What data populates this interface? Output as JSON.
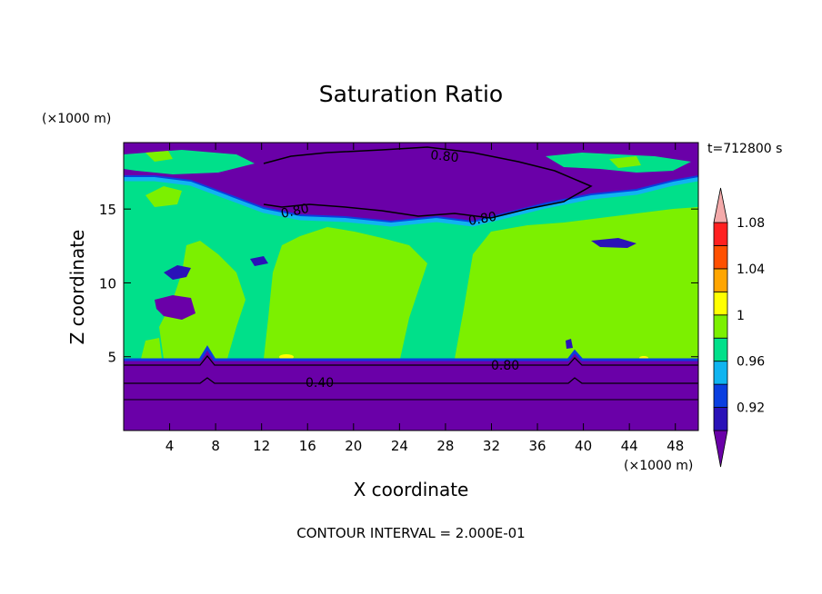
{
  "chart_data": {
    "type": "heatmap",
    "title": "Saturation Ratio",
    "xlabel": "X coordinate",
    "ylabel": "Z coordinate",
    "x_unit": "(×1000 m)",
    "y_unit": "(×1000 m)",
    "time_label": "t=712800 s",
    "footer": "CONTOUR INTERVAL = 2.000E-01",
    "xlim": [
      0,
      50
    ],
    "ylim": [
      0,
      19.5
    ],
    "x_ticks": [
      4,
      8,
      12,
      16,
      20,
      24,
      28,
      32,
      36,
      40,
      44,
      48
    ],
    "y_ticks": [
      5,
      10,
      15
    ],
    "colorbar": {
      "labels": [
        "1.08",
        "1.04",
        "1",
        "0.96",
        "0.92"
      ],
      "levels": [
        0.9,
        0.92,
        0.94,
        0.96,
        0.98,
        1.0,
        1.02,
        1.04,
        1.06,
        1.08,
        1.1
      ],
      "colors": [
        "#6a00a8",
        "#2a12b8",
        "#0a3fe0",
        "#10b4f0",
        "#00e08a",
        "#7cf000",
        "#ffff00",
        "#ffa500",
        "#ff5000",
        "#ff2020",
        "#f4aaaa"
      ]
    },
    "contour_labels": [
      "0.80",
      "0.80",
      "0.80",
      "0.80",
      "0.40"
    ]
  }
}
